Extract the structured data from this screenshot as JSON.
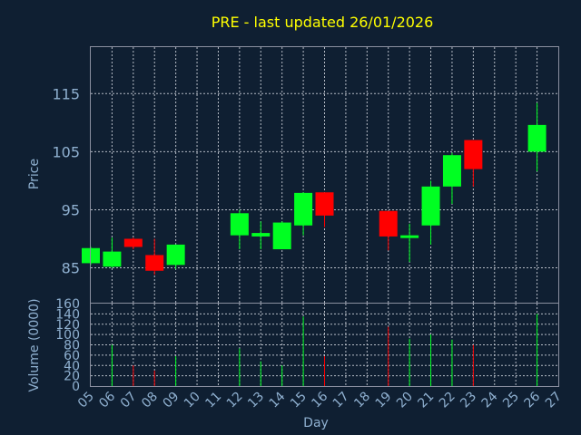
{
  "title": "PRE - last updated 26/01/2026",
  "colors": {
    "background": "#0f1f32",
    "up": "#00ff22",
    "down": "#ff0000",
    "title": "#ffff00",
    "axis_text": "#8fb0d0",
    "grid": "#c8ccd6"
  },
  "chart_data": [
    {
      "type": "candlestick",
      "ylabel": "Price",
      "ylim": [
        79,
        123
      ],
      "yticks": [
        85,
        95,
        105,
        115
      ],
      "grid": true,
      "x": [
        "05",
        "06",
        "07",
        "08",
        "09",
        "12",
        "13",
        "14",
        "15",
        "16",
        "19",
        "20",
        "21",
        "22",
        "23",
        "26"
      ],
      "candles": [
        {
          "x": "05",
          "open": 85.8,
          "high": 88.6,
          "low": 85.5,
          "close": 88.4
        },
        {
          "x": "06",
          "open": 85.2,
          "high": 90.2,
          "low": 85.0,
          "close": 87.8
        },
        {
          "x": "07",
          "open": 90.0,
          "high": 90.2,
          "low": 88.2,
          "close": 88.6
        },
        {
          "x": "08",
          "open": 87.2,
          "high": 90.0,
          "low": 83.8,
          "close": 84.5
        },
        {
          "x": "09",
          "open": 85.5,
          "high": 89.0,
          "low": 84.8,
          "close": 89.0
        },
        {
          "x": "12",
          "open": 90.6,
          "high": 95.0,
          "low": 88.2,
          "close": 94.4
        },
        {
          "x": "13",
          "open": 90.4,
          "high": 93.0,
          "low": 88.2,
          "close": 91.0
        },
        {
          "x": "14",
          "open": 88.2,
          "high": 93.0,
          "low": 88.2,
          "close": 92.8
        },
        {
          "x": "15",
          "open": 92.3,
          "high": 98.0,
          "low": 90.6,
          "close": 97.9
        },
        {
          "x": "16",
          "open": 98.0,
          "high": 98.0,
          "low": 92.0,
          "close": 94.0
        },
        {
          "x": "19",
          "open": 94.8,
          "high": 94.8,
          "low": 88.0,
          "close": 90.4
        },
        {
          "x": "20",
          "open": 90.4,
          "high": 92.6,
          "low": 86.0,
          "close": 90.6
        },
        {
          "x": "21",
          "open": 92.3,
          "high": 100.0,
          "low": 89.0,
          "close": 99.0
        },
        {
          "x": "22",
          "open": 99.0,
          "high": 104.8,
          "low": 96.0,
          "close": 104.4
        },
        {
          "x": "23",
          "open": 107.0,
          "high": 107.0,
          "low": 99.0,
          "close": 102.0
        },
        {
          "x": "26",
          "open": 105.0,
          "high": 113.4,
          "low": 101.6,
          "close": 109.6
        }
      ]
    },
    {
      "type": "bar",
      "ylabel": "Volume (0000)",
      "xlabel": "Day",
      "ylim": [
        0,
        160
      ],
      "yticks": [
        0,
        20,
        40,
        60,
        80,
        100,
        120,
        140,
        160
      ],
      "grid": true,
      "xticks": [
        "05",
        "06",
        "07",
        "08",
        "09",
        "10",
        "11",
        "12",
        "13",
        "14",
        "15",
        "16",
        "17",
        "18",
        "19",
        "20",
        "21",
        "22",
        "23",
        "24",
        "25",
        "26",
        "27"
      ],
      "bars": [
        {
          "x": "06",
          "value": 80,
          "color": "up"
        },
        {
          "x": "07",
          "value": 40,
          "color": "down"
        },
        {
          "x": "08",
          "value": 30,
          "color": "down"
        },
        {
          "x": "09",
          "value": 58,
          "color": "up"
        },
        {
          "x": "12",
          "value": 73,
          "color": "up"
        },
        {
          "x": "13",
          "value": 48,
          "color": "up"
        },
        {
          "x": "14",
          "value": 40,
          "color": "up"
        },
        {
          "x": "15",
          "value": 135,
          "color": "up"
        },
        {
          "x": "16",
          "value": 58,
          "color": "down"
        },
        {
          "x": "19",
          "value": 115,
          "color": "down"
        },
        {
          "x": "20",
          "value": 92,
          "color": "up"
        },
        {
          "x": "21",
          "value": 100,
          "color": "up"
        },
        {
          "x": "22",
          "value": 90,
          "color": "up"
        },
        {
          "x": "23",
          "value": 80,
          "color": "down"
        },
        {
          "x": "26",
          "value": 140,
          "color": "up"
        }
      ]
    }
  ]
}
